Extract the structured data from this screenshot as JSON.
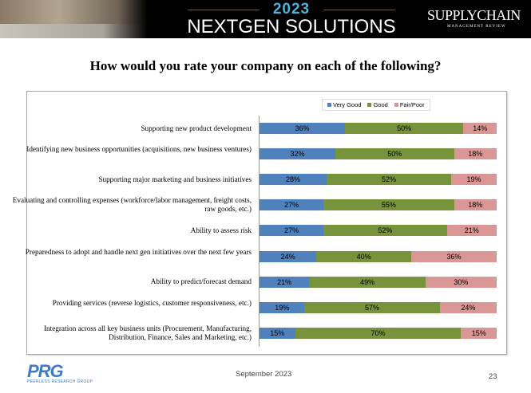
{
  "header": {
    "year": "2023",
    "title": "NEXTGEN SOLUTIONS",
    "logo_main": "SUPPLYCHAIN",
    "logo_sub": "MANAGEMENT REVIEW"
  },
  "slide_title": "How would you rate your company on each of the following?",
  "chart_data": {
    "type": "bar",
    "orientation": "horizontal",
    "stacked": true,
    "title": "",
    "categories": [
      "Supporting new product development",
      "Identifying new business opportunities (acquisitions, new business ventures)",
      "Supporting major marketing and business initiatives",
      "Evaluating and controlling expenses (workforce/labor management, freight costs, raw goods, etc.)",
      "Ability to assess risk",
      "Preparedness to adopt and handle next gen initiatives over the next few years",
      "Ability to predict/forecast demand",
      "Providing services (reverse logistics, customer responsiveness, etc.)",
      "Integration across all key business units (Procurement, Manufacturing, Distribution, Finance, Sales and Marketing, etc.)"
    ],
    "series": [
      {
        "name": "Very Good",
        "color": "#4f81bd",
        "values": [
          36,
          32,
          28,
          27,
          27,
          24,
          21,
          19,
          15
        ]
      },
      {
        "name": "Good",
        "color": "#77933c",
        "values": [
          50,
          50,
          52,
          55,
          52,
          40,
          49,
          57,
          70
        ]
      },
      {
        "name": "Fair/Poor",
        "color": "#d99694",
        "values": [
          14,
          18,
          19,
          18,
          21,
          36,
          30,
          24,
          15
        ]
      }
    ],
    "value_format": "percent",
    "legend": "top",
    "grid": false
  },
  "footer": {
    "logo": "PRG",
    "logo_sub": "PEERLESS RESEARCH GROUP",
    "date": "September 2023",
    "page": "23"
  }
}
